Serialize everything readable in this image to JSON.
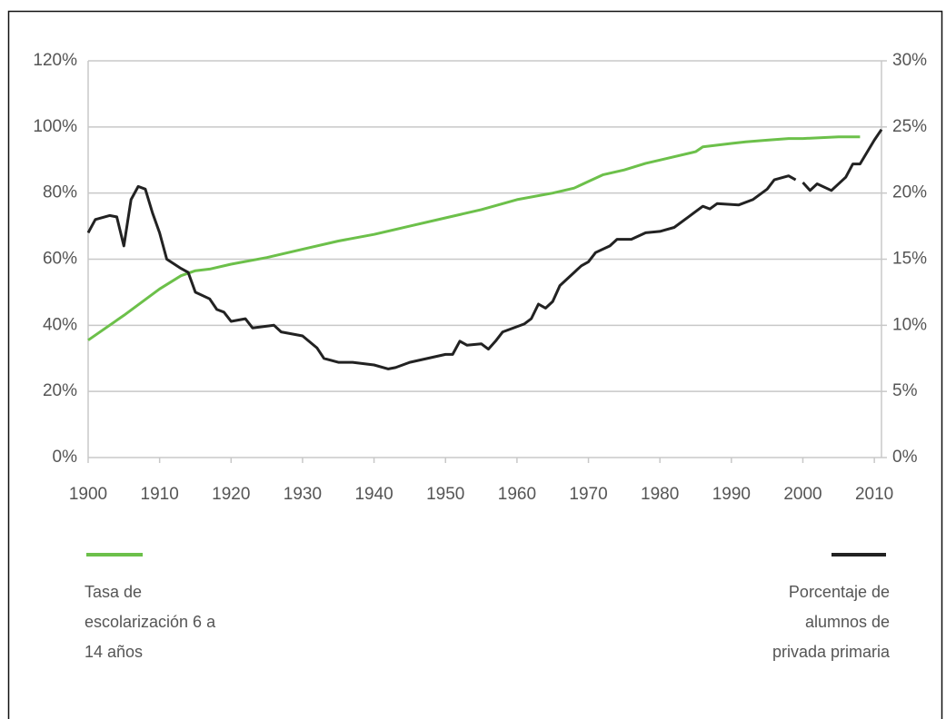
{
  "chart_data": {
    "type": "line",
    "xlim": [
      1900,
      2011
    ],
    "xticks": [
      1900,
      1910,
      1920,
      1930,
      1940,
      1950,
      1960,
      1970,
      1980,
      1990,
      2000,
      2010
    ],
    "ylim": [
      0,
      120
    ],
    "yticks": [
      {
        "value": 0,
        "label": "0%"
      },
      {
        "value": 20,
        "label": "20%"
      },
      {
        "value": 40,
        "label": "40%"
      },
      {
        "value": 60,
        "label": "60%"
      },
      {
        "value": 80,
        "label": "80%"
      },
      {
        "value": 100,
        "label": "100%"
      },
      {
        "value": 120,
        "label": "120%"
      }
    ],
    "y2lim": [
      0,
      30
    ],
    "y2ticks": [
      {
        "value": 0,
        "label": "0%"
      },
      {
        "value": 5,
        "label": "5%"
      },
      {
        "value": 10,
        "label": "10%"
      },
      {
        "value": 15,
        "label": "15%"
      },
      {
        "value": 20,
        "label": "20%"
      },
      {
        "value": 25,
        "label": "25%"
      },
      {
        "value": 30,
        "label": "30%"
      }
    ],
    "grid": true,
    "series": [
      {
        "name": "Tasa de escolarización 6 a 14 años",
        "color": "#6cc04a",
        "x": [
          1900,
          1905,
          1910,
          1913,
          1915,
          1917,
          1920,
          1925,
          1930,
          1935,
          1940,
          1945,
          1950,
          1955,
          1960,
          1965,
          1968,
          1970,
          1972,
          1975,
          1978,
          1980,
          1985,
          1986,
          1990,
          1992,
          1995,
          1998,
          2000,
          2005,
          2008
        ],
        "values": [
          35.5,
          43,
          51,
          55,
          56.5,
          57,
          58.5,
          60.5,
          63,
          65.5,
          67.5,
          70,
          72.5,
          75,
          78,
          80,
          81.5,
          83.5,
          85.5,
          87,
          89,
          90,
          92.5,
          94,
          95,
          95.5,
          96,
          96.5,
          96.5,
          97,
          97
        ]
      },
      {
        "name": "Porcentaje de alumnos de privada primaria",
        "color": "#222222",
        "axis": "y2",
        "x": [
          1900,
          1901,
          1903,
          1904,
          1905,
          1906,
          1907,
          1908,
          1909,
          1910,
          1911,
          1913,
          1914,
          1915,
          1917,
          1918,
          1919,
          1920,
          1922,
          1923,
          1926,
          1927,
          1930,
          1932,
          1933,
          1935,
          1937,
          1940,
          1942,
          1943,
          1945,
          1950,
          1951,
          1952,
          1953,
          1955,
          1956,
          1957,
          1958,
          1961,
          1962,
          1963,
          1964,
          1965,
          1966,
          1968,
          1969,
          1970,
          1971,
          1973,
          1974,
          1976,
          1978,
          1980,
          1982,
          1984,
          1986,
          1987,
          1988,
          1991,
          1993,
          1995,
          1996,
          1998,
          1999,
          1999.5,
          2000,
          2001,
          2002,
          2004,
          2006,
          2007,
          2008,
          2010,
          2011
        ],
        "values": [
          17,
          18,
          18.3,
          18.2,
          16,
          19.5,
          20.5,
          20.3,
          18.5,
          17,
          15,
          14.3,
          14,
          12.5,
          12,
          11.2,
          11,
          10.3,
          10.5,
          9.8,
          10,
          9.5,
          9.2,
          8.3,
          7.5,
          7.2,
          7.2,
          7,
          6.7,
          6.8,
          7.2,
          7.8,
          7.8,
          8.8,
          8.5,
          8.6,
          8.2,
          8.8,
          9.5,
          10.1,
          10.5,
          11.6,
          11.3,
          11.8,
          13,
          14,
          14.5,
          14.8,
          15.5,
          16,
          16.5,
          16.5,
          17,
          17.1,
          17.4,
          18.2,
          19,
          18.8,
          19.2,
          19.1,
          19.5,
          20.3,
          21,
          21.3,
          21,
          null,
          20.8,
          20.2,
          20.7,
          20.2,
          21.2,
          22.2,
          22.2,
          24,
          24.8
        ]
      }
    ]
  }
}
